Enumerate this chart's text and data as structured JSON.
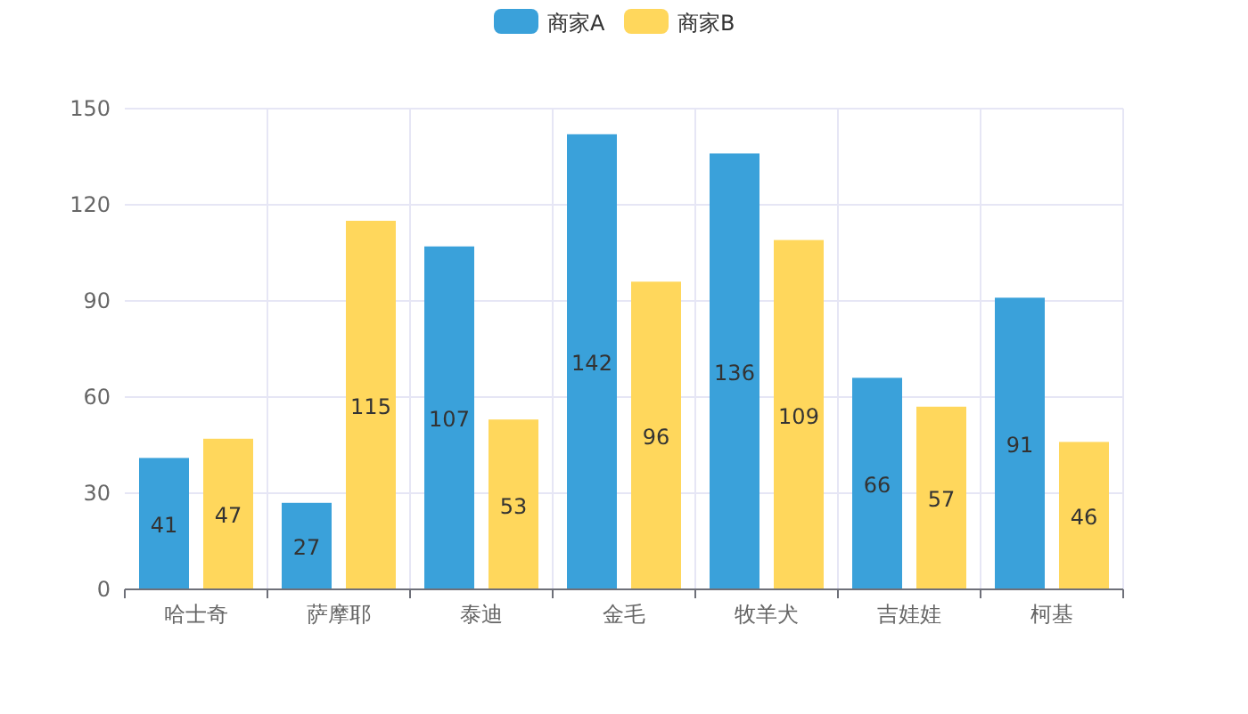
{
  "chart_data": {
    "type": "bar",
    "categories": [
      "哈士奇",
      "萨摩耶",
      "泰迪",
      "金毛",
      "牧羊犬",
      "吉娃娃",
      "柯基"
    ],
    "series": [
      {
        "name": "商家A",
        "color": "#3aa1da",
        "values": [
          41,
          27,
          107,
          142,
          136,
          66,
          91
        ]
      },
      {
        "name": "商家B",
        "color": "#ffd75c",
        "values": [
          47,
          115,
          53,
          96,
          109,
          57,
          46
        ]
      }
    ],
    "ylim": [
      0,
      150
    ],
    "yticks": [
      0,
      30,
      60,
      90,
      120,
      150
    ],
    "grid": true,
    "legend": "top",
    "data_labels": true
  }
}
